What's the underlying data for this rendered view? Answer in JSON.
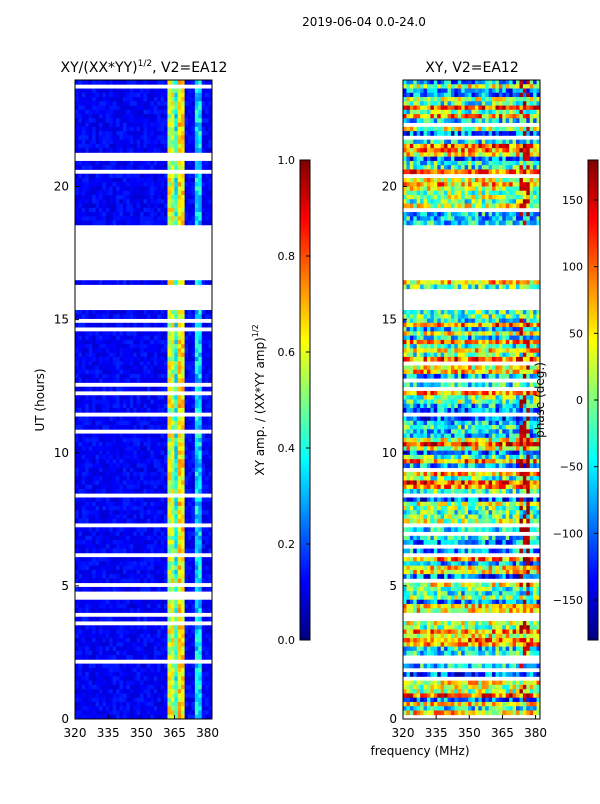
{
  "page": {
    "title": "2019-06-04 0.0-24.0",
    "xlabel": "frequency (MHz)"
  },
  "colors": {
    "jet": [
      "#00007f",
      "#0000ff",
      "#007fff",
      "#00ffff",
      "#7fff7f",
      "#ffff00",
      "#ff7f00",
      "#ff0000",
      "#7f0000"
    ]
  },
  "chart_data": [
    {
      "type": "heatmap",
      "title_main": "XY/(XX*YY)",
      "title_exp": "1/2",
      "title_suffix": ", V2=EA12",
      "ylabel": "UT (hours)",
      "xlim": [
        320,
        382
      ],
      "ylim": [
        0,
        24
      ],
      "x_ticks": [
        320,
        335,
        350,
        365,
        380
      ],
      "y_ticks": [
        0,
        5,
        10,
        15,
        20
      ],
      "gaps_hours": [
        [
          16.5,
          18.5
        ],
        [
          15.3,
          16.1
        ],
        [
          11.3,
          11.5
        ],
        [
          8.3,
          8.5
        ],
        [
          6.1,
          6.2
        ],
        [
          2.1,
          2.3
        ],
        [
          0.9,
          1.0
        ]
      ],
      "pattern": "low amplitude background with bright features near 362-371 MHz and 374-378 MHz",
      "colorbar": {
        "label_main": "XY amp. / (XX*YY amp)",
        "label_exp": "1/2",
        "range": [
          0.0,
          1.0
        ],
        "ticks": [
          "0.0",
          "0.2",
          "0.4",
          "0.6",
          "0.8",
          "1.0"
        ]
      }
    },
    {
      "type": "heatmap",
      "title_main": "XY, V2=EA12",
      "ylabel": "",
      "xlim": [
        320,
        382
      ],
      "ylim": [
        0,
        24
      ],
      "x_ticks": [
        320,
        335,
        350,
        365,
        380
      ],
      "y_ticks": [
        0,
        5,
        10,
        15,
        20
      ],
      "gaps_hours": [
        [
          16.5,
          18.5
        ],
        [
          15.3,
          16.1
        ],
        [
          11.3,
          11.5
        ],
        [
          8.3,
          8.5
        ],
        [
          6.1,
          6.2
        ],
        [
          2.1,
          2.3
        ],
        [
          0.9,
          1.0
        ]
      ],
      "pattern": "noisy phase with horizontal banding",
      "colorbar": {
        "label_main": "phase (deg.)",
        "range": [
          -180,
          180
        ],
        "ticks": [
          "−150",
          "−100",
          "−50",
          "0",
          "50",
          "100",
          "150"
        ],
        "tick_values": [
          -150,
          -100,
          -50,
          0,
          50,
          100,
          150
        ]
      }
    }
  ]
}
